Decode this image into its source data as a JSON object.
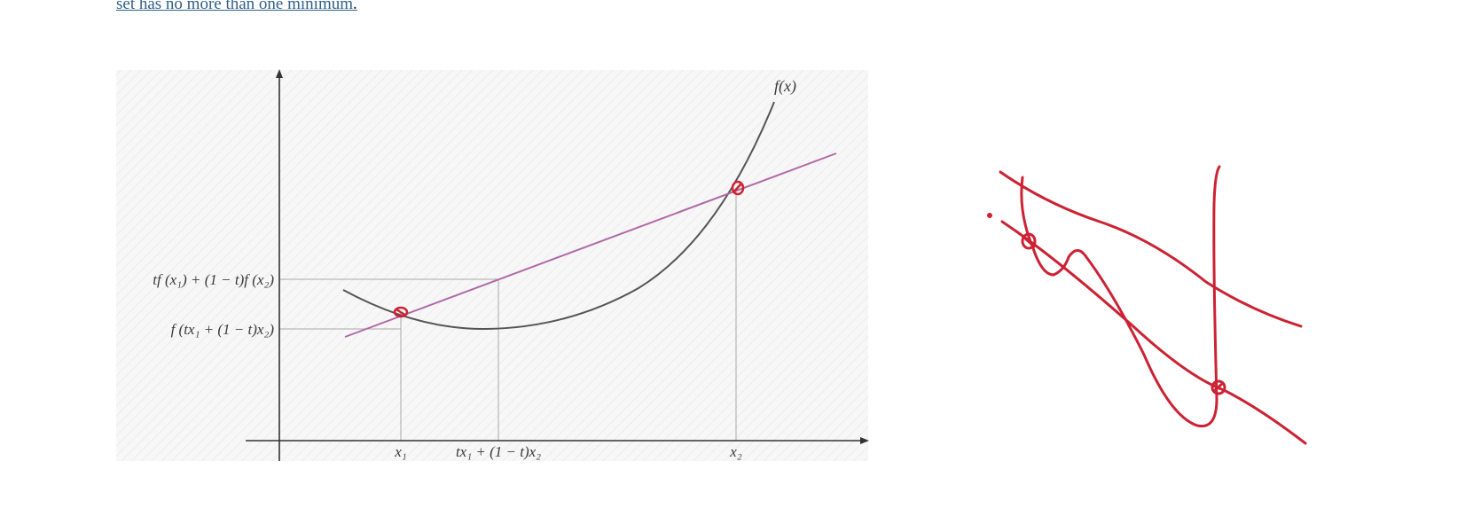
{
  "header": {
    "link_text": "set has no more than one minimum",
    "trailing": "."
  },
  "figure": {
    "curve_label": "f(x)",
    "y_label_upper": "tf (x₁) + (1 − t)f (x₂)",
    "y_label_lower": "f (tx₁ + (1 − t)x₂)",
    "x_label_1": "x₁",
    "x_label_mid": "tx₁ + (1 − t)x₂",
    "x_label_2": "x₂"
  },
  "colors": {
    "link": "#2f5f8a",
    "curve": "#555555",
    "chord": "#b06aa6",
    "guide": "#a8a8a8",
    "annotation": "#cc2233",
    "panel": "#f6f6f6"
  }
}
